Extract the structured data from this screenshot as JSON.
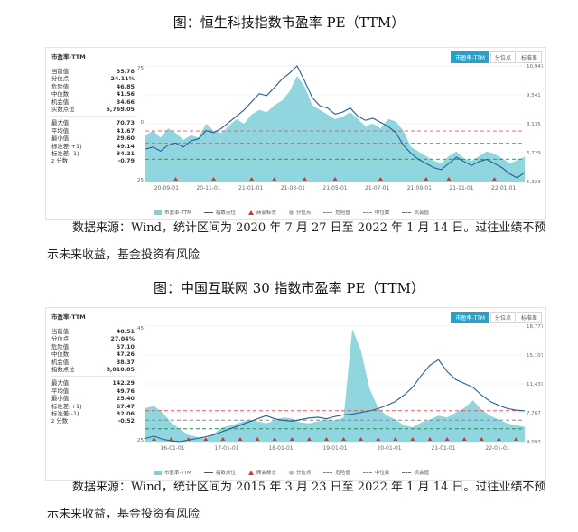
{
  "doc": {
    "title1": "图：恒生科技指数市盈率 PE（TTM）",
    "source1": "数据来源：Wind，统计区间为 2020 年 7 月 27 日至 2022 年 1 月 14 日。过往业绩不预示未来收益，基金投资有风险",
    "title2": "图：中国互联网 30 指数市盈率 PE（TTM）",
    "source2": "数据来源：Wind，统计区间为 2015 年 3 月 23 日至 2022 年 1 月 14 日。过往业绩不预示未来收益，基金投资有风险"
  },
  "panel_title": "市盈率-TTM",
  "tabs": [
    "市盈率-TTM",
    "分位点",
    "标准差"
  ],
  "legend": [
    "市盈率-TTM",
    "指数点位",
    "商会标志",
    "分位点",
    "危险值",
    "中位数",
    "机会值",
    "标准差（+1）",
    "平均值",
    "标准差（-1）"
  ],
  "colors": {
    "area": "#7ecfd8",
    "line": "#1f5f9a",
    "danger": "#e05a5a",
    "median": "#888888",
    "chance": "#2a8a5a",
    "marker": "#e0302a",
    "tab": "#2a9fc7"
  },
  "chart1": {
    "stats_top": [
      {
        "label": "当前值",
        "value": "35.78"
      },
      {
        "label": "分位点",
        "value": "24.11%"
      },
      {
        "label": "危险值",
        "value": "46.85"
      },
      {
        "label": "中位数",
        "value": "41.56"
      },
      {
        "label": "机会值",
        "value": "34.66"
      },
      {
        "label": "实数点位",
        "value": "5,769.05"
      }
    ],
    "stats_bottom": [
      {
        "label": "最大值",
        "value": "70.73"
      },
      {
        "label": "平均值",
        "value": "41.67"
      },
      {
        "label": "最小值",
        "value": "29.60"
      },
      {
        "label": "标准差(+1)",
        "value": "49.14"
      },
      {
        "label": "标准差(-1)",
        "value": "34.21"
      },
      {
        "label": "z 分数",
        "value": "-0.79"
      }
    ],
    "chart_data": {
      "type": "area",
      "x_ticks": [
        "20-09-01",
        "20-11-01",
        "21-01-01",
        "21-03-01",
        "21-05-01",
        "21-07-01",
        "21-09-01",
        "21-11-01",
        "22-01-01"
      ],
      "y_left_ticks": [
        "75",
        "0",
        "25"
      ],
      "y_right_ticks": [
        "10,947",
        "9,541",
        "8,135",
        "6,729",
        "5,323"
      ],
      "ylim_left": [
        25,
        75
      ],
      "ylim_right": [
        5323,
        10947
      ],
      "pe": [
        45,
        47,
        44,
        48,
        46,
        43,
        45,
        44,
        50,
        47,
        46,
        49,
        52,
        50,
        54,
        56,
        55,
        58,
        60,
        64,
        70.7,
        66,
        58,
        56,
        54,
        52,
        53,
        55,
        52,
        49,
        50,
        48,
        52,
        51,
        47,
        40,
        38,
        36,
        34,
        33,
        36,
        38,
        35,
        34,
        36,
        38,
        37,
        35,
        33,
        34,
        35.8
      ],
      "index": [
        6900,
        7000,
        6800,
        7100,
        7200,
        7000,
        7300,
        7400,
        7800,
        7700,
        7900,
        8200,
        8500,
        8800,
        9200,
        9600,
        9500,
        9900,
        10300,
        10600,
        10947,
        10200,
        9400,
        9000,
        8900,
        8600,
        8700,
        8900,
        8500,
        8300,
        8400,
        8200,
        8000,
        7700,
        7100,
        6700,
        6400,
        6200,
        6000,
        5900,
        6200,
        6500,
        6300,
        6100,
        6300,
        6400,
        6200,
        6000,
        5700,
        5500,
        5769
      ],
      "danger": 46.85,
      "median": 41.56,
      "chance": 34.66,
      "markers": [
        4,
        9,
        14,
        17,
        21,
        25,
        31,
        37,
        40,
        46
      ]
    }
  },
  "chart2": {
    "stats_top": [
      {
        "label": "当前值",
        "value": "40.51"
      },
      {
        "label": "分位点",
        "value": "27.04%"
      },
      {
        "label": "危险值",
        "value": "57.10"
      },
      {
        "label": "中位数",
        "value": "47.26"
      },
      {
        "label": "机会值",
        "value": "38.37"
      },
      {
        "label": "指数点位",
        "value": "8,010.85"
      }
    ],
    "stats_bottom": [
      {
        "label": "最大值",
        "value": "142.29"
      },
      {
        "label": "平均值",
        "value": "49.76"
      },
      {
        "label": "最小值",
        "value": "25.40"
      },
      {
        "label": "标准差(+1)",
        "value": "67.47"
      },
      {
        "label": "标准差(-1)",
        "value": "32.06"
      },
      {
        "label": "z 分数",
        "value": "-0.52"
      }
    ],
    "chart_data": {
      "type": "area",
      "x_ticks": [
        "16-01-01",
        "17-01-01",
        "18-01-01",
        "19-01-01",
        "20-01-01",
        "21-01-01",
        "22-01-01"
      ],
      "y_left_ticks": [
        "145",
        "25"
      ],
      "y_right_ticks": [
        "18,777",
        "15,107",
        "11,437",
        "7,767",
        "4,097"
      ],
      "ylim_left": [
        25,
        145
      ],
      "ylim_right": [
        4097,
        18777
      ],
      "pe": [
        60,
        62,
        55,
        45,
        38,
        32,
        30,
        28,
        34,
        40,
        42,
        45,
        48,
        46,
        44,
        47,
        50,
        49,
        45,
        44,
        46,
        48,
        47,
        50,
        142,
        120,
        80,
        60,
        52,
        48,
        42,
        40,
        45,
        48,
        52,
        50,
        55,
        60,
        68,
        58,
        52,
        48,
        44,
        42,
        40.5
      ],
      "index": [
        4500,
        4800,
        4400,
        4200,
        4100,
        4300,
        4500,
        4700,
        5000,
        5400,
        5800,
        6200,
        6600,
        7000,
        7400,
        7000,
        6800,
        6700,
        6900,
        7100,
        7200,
        7000,
        7300,
        7500,
        7600,
        7800,
        8000,
        8300,
        8700,
        9200,
        10000,
        11000,
        12500,
        13800,
        14500,
        13000,
        12000,
        11500,
        11000,
        10000,
        9200,
        8700,
        8300,
        8100,
        8010
      ],
      "danger": 57.1,
      "median": 47.26,
      "chance": 38.37,
      "markers": [
        1,
        3,
        5,
        7,
        9,
        11,
        13,
        15,
        17,
        19,
        21,
        23,
        25,
        27,
        29,
        31,
        33,
        35,
        37,
        39,
        41,
        43
      ]
    }
  }
}
